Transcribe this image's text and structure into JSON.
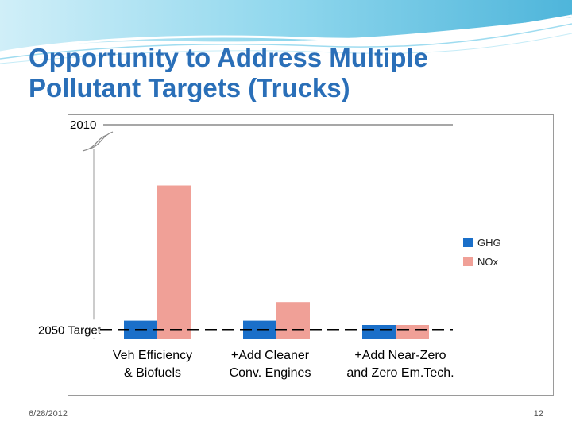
{
  "slide": {
    "title_line1": "Opportunity to Address Multiple",
    "title_line2": "Pollutant Targets (Trucks)",
    "footer_date": "6/28/2012",
    "page_number": "12",
    "accent_color": "#2a6fb8"
  },
  "chart_data": {
    "type": "bar",
    "categories": [
      [
        "Veh Efficiency",
        "& Biofuels"
      ],
      [
        "+Add Cleaner",
        "Conv. Engines"
      ],
      [
        "+Add Near-Zero",
        "and Zero Em.Tech."
      ]
    ],
    "series": [
      {
        "name": "GHG",
        "color": "#1a6fc9",
        "values": [
          26,
          26,
          20
        ]
      },
      {
        "name": "NOx",
        "color": "#f0a097",
        "values": [
          215,
          52,
          20
        ]
      }
    ],
    "ylim": [
      0,
      300
    ],
    "reference_lines": [
      {
        "label": "2050 Target",
        "value": 13
      },
      {
        "label": "2010",
        "value": 300
      }
    ],
    "legend_position": "right",
    "grid": false
  }
}
